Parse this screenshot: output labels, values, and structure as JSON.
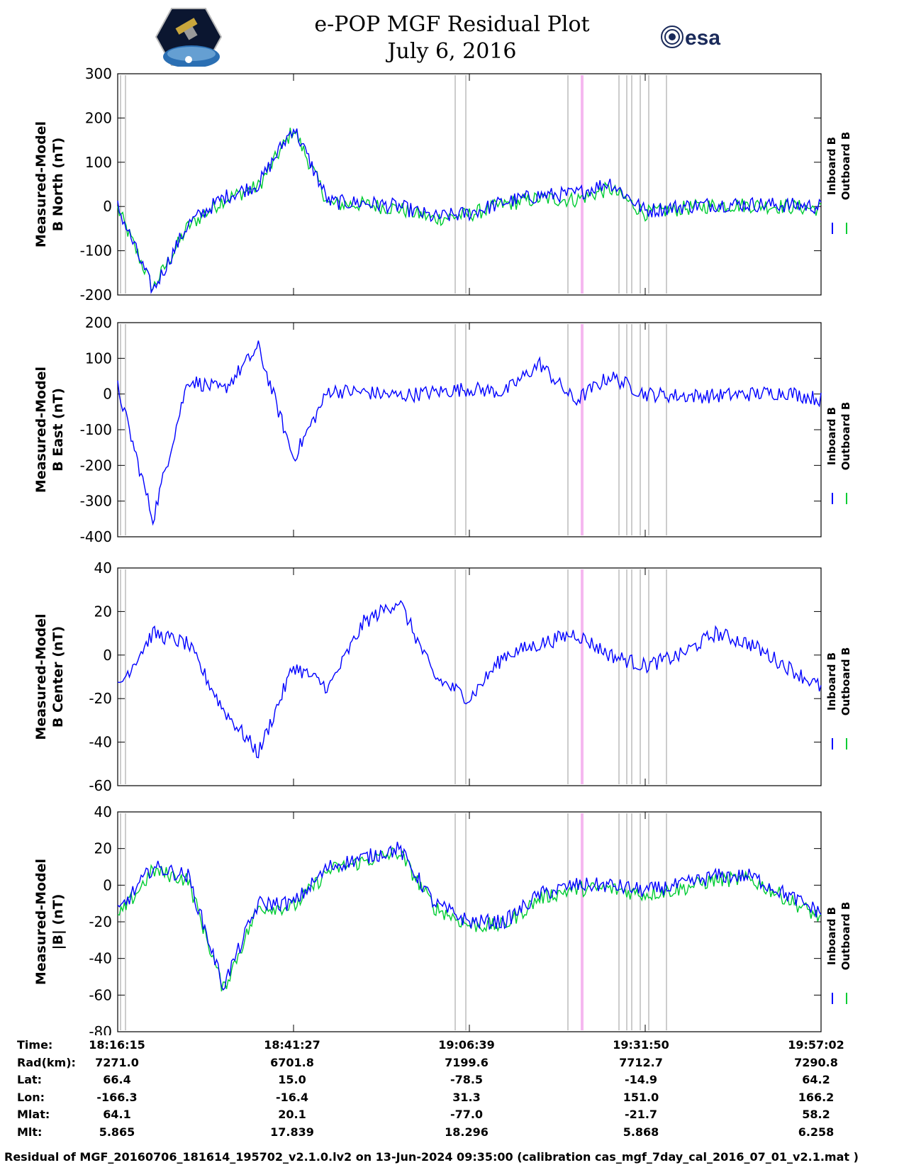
{
  "title": "e-POP MGF Residual Plot",
  "date": "July 6, 2016",
  "logos": {
    "left": "cassiope-mission-logo",
    "right": "esa"
  },
  "legend": {
    "inboard": "Inboard B",
    "outboard": "Outboard B"
  },
  "colors": {
    "inboard": "#0000ff",
    "outboard": "#00cc33",
    "gray_marker": "#cccccc",
    "pink_marker": "#f5b8f0"
  },
  "chart_data": [
    {
      "type": "line",
      "ylabel_line1": "Measured-Model",
      "ylabel_line2": "B North (nT)",
      "ylim": [
        -200,
        300
      ],
      "yticks": [
        "300",
        "200",
        "100",
        "0",
        "-100",
        "-200"
      ],
      "x": [
        0,
        1,
        2,
        3,
        4,
        5,
        6,
        7,
        8,
        9,
        10,
        11,
        12,
        13,
        14,
        15,
        16,
        17,
        18,
        19,
        20
      ],
      "series": [
        {
          "name": "Inboard B",
          "values": [
            0,
            -190,
            -40,
            20,
            50,
            180,
            10,
            8,
            0,
            -25,
            -15,
            10,
            25,
            28,
            55,
            -10,
            0,
            5,
            5,
            3,
            0
          ]
        },
        {
          "name": "Outboard B",
          "values": [
            -5,
            -185,
            -45,
            15,
            45,
            175,
            5,
            5,
            -5,
            -28,
            -18,
            5,
            18,
            15,
            40,
            -15,
            -5,
            3,
            3,
            0,
            -5
          ]
        }
      ]
    },
    {
      "type": "line",
      "ylabel_line1": "Measured-Model",
      "ylabel_line2": "B East (nT)",
      "ylim": [
        -400,
        200
      ],
      "yticks": [
        "200",
        "100",
        "0",
        "-100",
        "-200",
        "-300",
        "-400"
      ],
      "x": [
        0,
        1,
        2,
        3,
        4,
        5,
        6,
        7,
        8,
        9,
        10,
        11,
        12,
        13,
        14,
        15,
        16,
        17,
        18,
        19,
        20
      ],
      "series": [
        {
          "name": "Inboard B",
          "values": [
            20,
            -350,
            40,
            10,
            130,
            -180,
            10,
            5,
            -5,
            5,
            15,
            5,
            85,
            -20,
            50,
            0,
            -5,
            -5,
            0,
            5,
            -15
          ]
        }
      ]
    },
    {
      "type": "line",
      "ylabel_line1": "Measured-Model",
      "ylabel_line2": "B Center (nT)",
      "ylim": [
        -60,
        40
      ],
      "yticks": [
        "40",
        "20",
        "0",
        "-20",
        "-40",
        "-60"
      ],
      "x": [
        0,
        1,
        2,
        3,
        4,
        5,
        6,
        7,
        8,
        9,
        10,
        11,
        12,
        13,
        14,
        15,
        16,
        17,
        18,
        19,
        20
      ],
      "series": [
        {
          "name": "Inboard B",
          "values": [
            -15,
            10,
            5,
            -25,
            -45,
            -5,
            -15,
            15,
            25,
            -10,
            -20,
            0,
            5,
            10,
            0,
            -5,
            0,
            10,
            5,
            -5,
            -15
          ]
        }
      ]
    },
    {
      "type": "line",
      "ylabel_line1": "Measured-Model",
      "ylabel_line2": "|B| (nT)",
      "ylim": [
        -80,
        40
      ],
      "yticks": [
        "40",
        "20",
        "0",
        "-20",
        "-40",
        "-60",
        "-80"
      ],
      "x": [
        0,
        1,
        2,
        3,
        4,
        5,
        6,
        7,
        8,
        9,
        10,
        11,
        12,
        13,
        14,
        15,
        16,
        17,
        18,
        19,
        20
      ],
      "series": [
        {
          "name": "Inboard B",
          "values": [
            -15,
            10,
            5,
            -55,
            -10,
            -10,
            10,
            15,
            20,
            -10,
            -20,
            -20,
            -5,
            0,
            0,
            -3,
            0,
            5,
            5,
            -5,
            -15
          ]
        },
        {
          "name": "Outboard B",
          "values": [
            -18,
            8,
            3,
            -57,
            -12,
            -12,
            8,
            13,
            18,
            -12,
            -22,
            -22,
            -7,
            -2,
            -2,
            -5,
            -2,
            3,
            3,
            -7,
            -18
          ]
        }
      ]
    }
  ],
  "xaxis": {
    "row_labels": [
      "Time:",
      "Rad(km):",
      "Lat:",
      "Lon:",
      "Mlat:",
      "Mlt:"
    ],
    "columns": [
      {
        "time": "18:16:15",
        "rad": "7271.0",
        "lat": "66.4",
        "lon": "-166.3",
        "mlat": "64.1",
        "mlt": "5.865"
      },
      {
        "time": "18:41:27",
        "rad": "6701.8",
        "lat": "15.0",
        "lon": "-16.4",
        "mlat": "20.1",
        "mlt": "17.839"
      },
      {
        "time": "19:06:39",
        "rad": "7199.6",
        "lat": "-78.5",
        "lon": "31.3",
        "mlat": "-77.0",
        "mlt": "18.296"
      },
      {
        "time": "19:31:50",
        "rad": "7712.7",
        "lat": "-14.9",
        "lon": "151.0",
        "mlat": "-21.7",
        "mlt": "5.868"
      },
      {
        "time": "19:57:02",
        "rad": "7290.8",
        "lat": "64.2",
        "lon": "166.2",
        "mlat": "58.2",
        "mlt": "6.258"
      }
    ]
  },
  "footer": "Residual of MGF_20160706_181614_195702_v2.1.0.lv2 on 13-Jun-2024 09:35:00 (calibration cas_mgf_7day_cal_2016_07_01_v2.1.mat )"
}
